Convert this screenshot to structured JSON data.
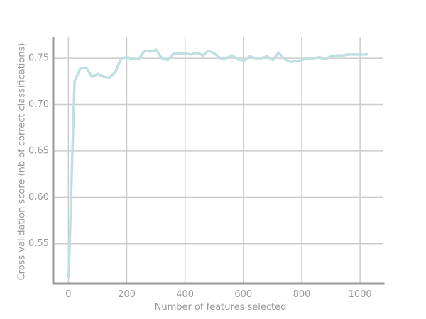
{
  "colors": {
    "series": "#bfe0e3",
    "grid": "#cccccc",
    "axis": "#999999",
    "text": "#999999",
    "background": "#ffffff"
  },
  "chart_data": {
    "type": "line",
    "title": "",
    "xlabel": "Number of features selected",
    "ylabel": "Cross validation score (nb of correct classifications)",
    "xlim": [
      -52,
      1080
    ],
    "ylim": [
      0.507,
      0.773
    ],
    "x_ticks": [
      0,
      200,
      400,
      600,
      800,
      1000
    ],
    "y_ticks": [
      0.55,
      0.6,
      0.65,
      0.7,
      0.75
    ],
    "x_tick_labels": [
      "0",
      "200",
      "400",
      "600",
      "800",
      "1000"
    ],
    "y_tick_labels": [
      "0.55",
      "0.60",
      "0.65",
      "0.70",
      "0.75"
    ],
    "grid": true,
    "legend": "none",
    "series": [
      {
        "x": [
          1,
          21,
          41,
          61,
          81,
          101,
          121,
          141,
          161,
          181,
          201,
          221,
          241,
          261,
          281,
          301,
          321,
          341,
          361,
          381,
          401,
          421,
          441,
          461,
          481,
          501,
          521,
          541,
          561,
          581,
          601,
          621,
          641,
          661,
          681,
          701,
          721,
          741,
          761,
          781,
          801,
          821,
          841,
          861,
          881,
          901,
          921,
          941,
          961,
          981,
          1001,
          1024
        ],
        "y": [
          0.514,
          0.725,
          0.739,
          0.74,
          0.73,
          0.733,
          0.73,
          0.729,
          0.735,
          0.75,
          0.751,
          0.749,
          0.749,
          0.758,
          0.757,
          0.759,
          0.75,
          0.748,
          0.755,
          0.755,
          0.755,
          0.754,
          0.756,
          0.753,
          0.758,
          0.755,
          0.75,
          0.75,
          0.753,
          0.749,
          0.747,
          0.752,
          0.75,
          0.75,
          0.752,
          0.748,
          0.756,
          0.749,
          0.746,
          0.747,
          0.748,
          0.75,
          0.75,
          0.751,
          0.749,
          0.752,
          0.753,
          0.753,
          0.754,
          0.754,
          0.754,
          0.754
        ]
      }
    ]
  }
}
